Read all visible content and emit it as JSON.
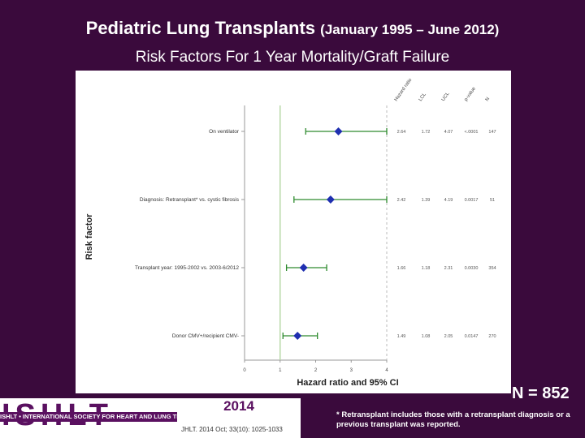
{
  "title": {
    "main": "Pediatric Lung Transplants",
    "dates": "(January 1995 – June 2012)",
    "subtitle": "Risk Factors For 1 Year Mortality/Graft Failure"
  },
  "n_label": "N = 852",
  "footnote": "* Retransplant includes those with a retransplant diagnosis or a previous transplant was reported.",
  "logo": {
    "text": "ISHLT",
    "strip": "ISHLT • INTERNATIONAL SOCIETY FOR HEART AND LUNG TRANSPLANTATION"
  },
  "year": "2014",
  "citation": "JHLT. 2014 Oct; 33(10): 1025-1033",
  "colors": {
    "background": "#3a0a3c",
    "ci_line": "#2e8b2e",
    "point": "#1f2fb0",
    "ref_line": "#b8d8a8"
  },
  "chart_data": {
    "type": "forest",
    "xlabel": "Hazard ratio and 95% CI",
    "ylabel": "Risk factor",
    "xlim": [
      0,
      4
    ],
    "x_ticks": [
      "0",
      "1",
      "2",
      "3",
      "4"
    ],
    "reference_line": 1,
    "column_headers": [
      "Hazard ratio",
      "LCL",
      "UCL",
      "p-value",
      "N"
    ],
    "rows": [
      {
        "label": "On ventilator",
        "hr": 2.64,
        "lcl": 1.72,
        "ucl": 4.07,
        "hr_text": "2.64",
        "lcl_text": "1.72",
        "ucl_text": "4.07",
        "p_text": "<.0001",
        "n_text": "147"
      },
      {
        "label": "Diagnosis: Retransplant* vs. cystic fibrosis",
        "hr": 2.42,
        "lcl": 1.39,
        "ucl": 4.19,
        "hr_text": "2.42",
        "lcl_text": "1.39",
        "ucl_text": "4.19",
        "p_text": "0.0017",
        "n_text": "51"
      },
      {
        "label": "Transplant year: 1995-2002 vs. 2003-6/2012",
        "hr": 1.66,
        "lcl": 1.18,
        "ucl": 2.31,
        "hr_text": "1.66",
        "lcl_text": "1.18",
        "ucl_text": "2.31",
        "p_text": "0.0030",
        "n_text": "354"
      },
      {
        "label": "Donor CMV+/recipient CMV-",
        "hr": 1.49,
        "lcl": 1.08,
        "ucl": 2.05,
        "hr_text": "1.49",
        "lcl_text": "1.08",
        "ucl_text": "2.05",
        "p_text": "0.0147",
        "n_text": "270"
      }
    ]
  }
}
